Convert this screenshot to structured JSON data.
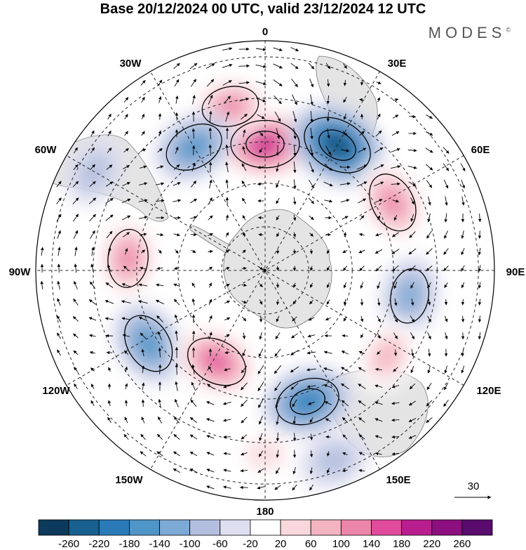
{
  "title": "Base 20/12/2024 00 UTC, valid 23/12/2024 12 UTC",
  "brand": {
    "name": "MODES",
    "mark": "©"
  },
  "map": {
    "projection": "south-polar-stereographic",
    "longitude_labels": [
      "0",
      "30E",
      "60E",
      "90E",
      "120E",
      "150E",
      "180",
      "150W",
      "120W",
      "90W",
      "60W",
      "30W"
    ],
    "vector_reference": {
      "label": "30"
    }
  },
  "colorbar": {
    "levels": [
      "-260",
      "-220",
      "-180",
      "-140",
      "-100",
      "-60",
      "-20",
      "20",
      "60",
      "100",
      "140",
      "180",
      "220",
      "260"
    ],
    "colors": [
      "#0d3a5c",
      "#17608f",
      "#2a7ab8",
      "#4f95c8",
      "#7daad4",
      "#b3bfdf",
      "#dedff0",
      "#ffffff",
      "#f8d8dc",
      "#f3b3c0",
      "#ec85aa",
      "#e14b9c",
      "#b81e8e",
      "#8b0f7f",
      "#5a0b6e"
    ]
  },
  "anomalies": [
    {
      "lon": 0,
      "r": 0.55,
      "value": 220
    },
    {
      "lon": 348,
      "r": 0.73,
      "value": 120
    },
    {
      "lon": 30,
      "r": 0.63,
      "value": -240
    },
    {
      "lon": 330,
      "r": 0.62,
      "value": -140
    },
    {
      "lon": 62,
      "r": 0.63,
      "value": 150
    },
    {
      "lon": 275,
      "r": 0.6,
      "value": 130
    },
    {
      "lon": 100,
      "r": 0.64,
      "value": -100
    },
    {
      "lon": 238,
      "r": 0.6,
      "value": -150
    },
    {
      "lon": 208,
      "r": 0.45,
      "value": 160
    },
    {
      "lon": 162,
      "r": 0.6,
      "value": -180
    },
    {
      "lon": 125,
      "r": 0.65,
      "value": 80
    },
    {
      "lon": 180,
      "r": 0.8,
      "value": 50
    },
    {
      "lon": 160,
      "r": 0.88,
      "value": -60
    },
    {
      "lon": 300,
      "r": 0.86,
      "value": -50
    }
  ]
}
